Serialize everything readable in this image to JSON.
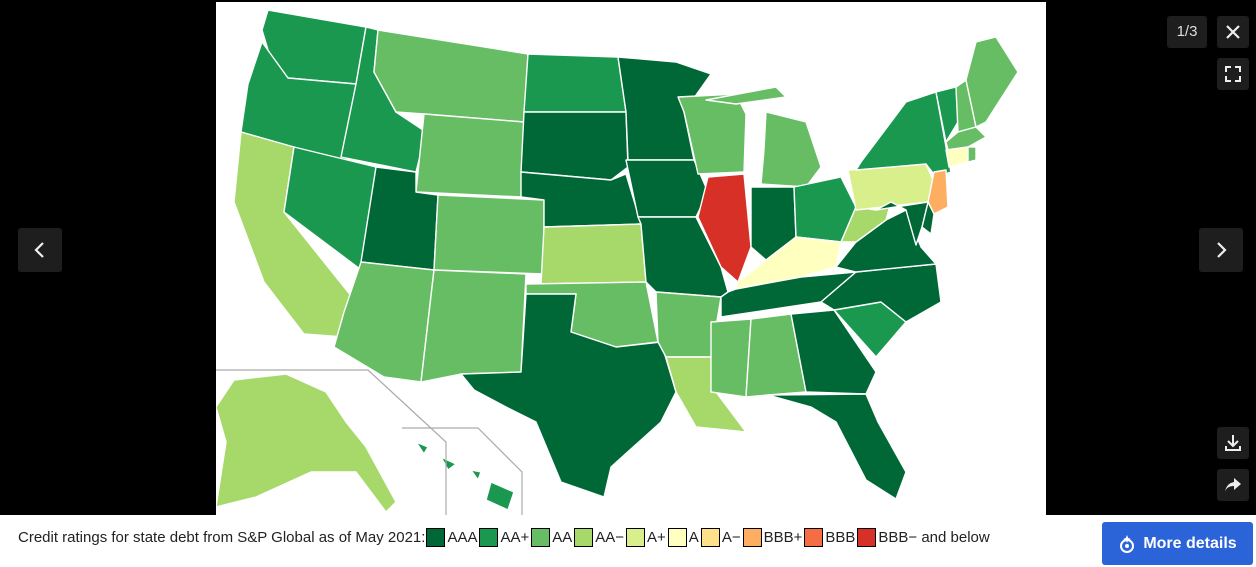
{
  "viewer": {
    "counter": "1/3",
    "more_details_label": "More details",
    "icons": [
      "close-icon",
      "fullscreen-icon",
      "chevron-left-icon",
      "chevron-right-icon",
      "download-icon",
      "share-icon",
      "sparkle-icon"
    ]
  },
  "caption": {
    "text": "Credit ratings for state debt from S&P Global as of May 2021:",
    "legend": [
      {
        "label": "AAA",
        "color": "#006837"
      },
      {
        "label": "AA+",
        "color": "#1a9850"
      },
      {
        "label": "AA",
        "color": "#66bd63"
      },
      {
        "label": "AA−",
        "color": "#a6d96a"
      },
      {
        "label": "A+",
        "color": "#d9ef8b"
      },
      {
        "label": "A",
        "color": "#ffffbf"
      },
      {
        "label": "A−",
        "color": "#fee08b"
      },
      {
        "label": "BBB+",
        "color": "#fdae61"
      },
      {
        "label": "BBB",
        "color": "#f46d43"
      },
      {
        "label": "BBB− and below",
        "color": "#d73027"
      }
    ]
  },
  "map_data": {
    "states": {
      "WA": "AA+",
      "OR": "AA+",
      "CA": "AA−",
      "NV": "AA+",
      "ID": "AA+",
      "MT": "AA",
      "WY": "AA",
      "UT": "AAA",
      "AZ": "AA",
      "CO": "AA",
      "NM": "AA",
      "ND": "AA+",
      "SD": "AAA",
      "NE": "AAA",
      "KS": "AA−",
      "OK": "AA",
      "TX": "AAA",
      "MN": "AAA",
      "IA": "AAA",
      "MO": "AAA",
      "AR": "AA",
      "LA": "AA−",
      "WI": "AA",
      "IL": "BBB− and below",
      "MI": "AA",
      "IN": "AAA",
      "OH": "AA+",
      "KY": "A",
      "TN": "AAA",
      "MS": "AA",
      "AL": "AA",
      "GA": "AAA",
      "FL": "AAA",
      "SC": "AA+",
      "NC": "AAA",
      "VA": "AAA",
      "WV": "AA−",
      "PA": "A+",
      "NY": "AA+",
      "VT": "AA+",
      "NH": "AA",
      "ME": "AA",
      "MA": "AA",
      "CT": "A",
      "RI": "AA",
      "NJ": "BBB+",
      "DE": "AAA",
      "MD": "AAA",
      "AK": "AA−",
      "HI": "AA+"
    }
  }
}
